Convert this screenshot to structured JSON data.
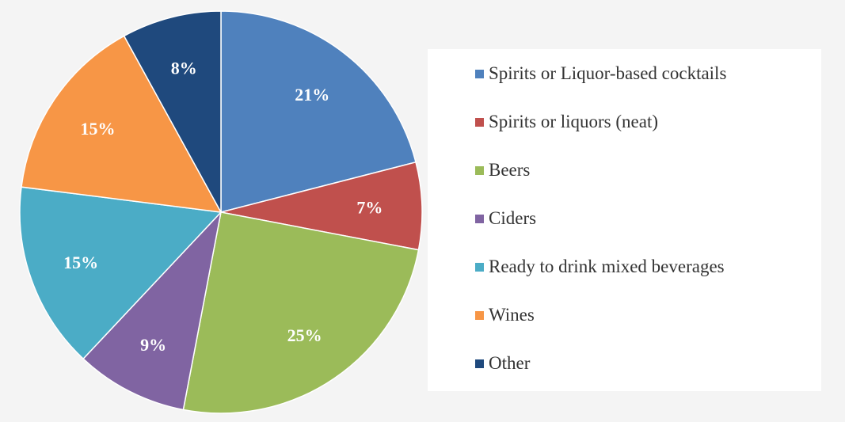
{
  "chart_data": {
    "type": "pie",
    "title": "",
    "categories": [
      "Spirits or Liquor-based cocktails",
      "Spirits or liquors (neat)",
      "Beers",
      "Ciders",
      "Ready to drink mixed beverages",
      "Wines",
      "Other"
    ],
    "values": [
      21,
      7,
      25,
      9,
      15,
      15,
      8
    ],
    "data_labels": [
      "21%",
      "7%",
      "25%",
      "9%",
      "15%",
      "15%",
      "8%"
    ],
    "colors": [
      "#4f81bd",
      "#c0504d",
      "#9bbb59",
      "#8064a2",
      "#4bacc6",
      "#f79646",
      "#1f497d"
    ],
    "legend_position": "right",
    "start_angle": "12 o'clock, clockwise"
  }
}
